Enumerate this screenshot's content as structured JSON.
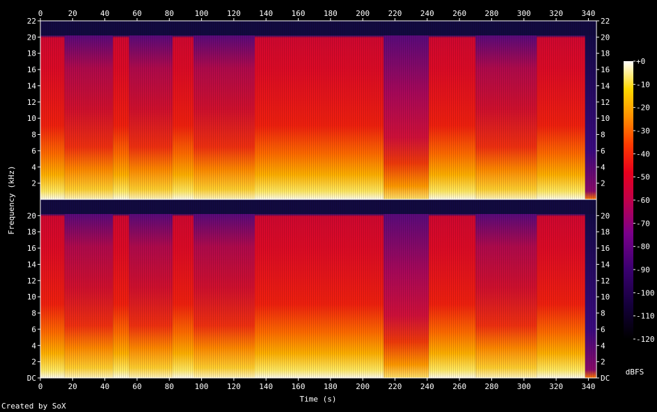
{
  "chart_data": {
    "type": "heatmap",
    "title": "",
    "xlabel": "Time (s)",
    "ylabel": "Frequency (kHz)",
    "xlim": [
      0,
      345
    ],
    "x_ticks": [
      0,
      20,
      40,
      60,
      80,
      100,
      120,
      140,
      160,
      180,
      200,
      220,
      240,
      260,
      280,
      300,
      320,
      340
    ],
    "channels": [
      {
        "ylim": [
          0,
          22
        ],
        "y_ticks": [
          "2",
          "4",
          "6",
          "8",
          "10",
          "12",
          "14",
          "16",
          "18",
          "20",
          "22"
        ]
      },
      {
        "ylim": [
          0,
          22
        ],
        "y_ticks": [
          "DC",
          "2",
          "4",
          "6",
          "8",
          "10",
          "12",
          "14",
          "16",
          "18",
          "20"
        ]
      }
    ],
    "colorbar": {
      "label": "dBFS",
      "range": [
        -120,
        0
      ],
      "ticks": [
        "+0",
        "-10",
        "-20",
        "-30",
        "-40",
        "-50",
        "-60",
        "-70",
        "-80",
        "-90",
        "-100",
        "-110",
        "-120"
      ]
    },
    "segments": [
      {
        "t": [
          0,
          15
        ],
        "level": "loud",
        "cutoff_khz": 20.2
      },
      {
        "t": [
          15,
          45
        ],
        "level": "mid",
        "cutoff_khz": 20.2
      },
      {
        "t": [
          45,
          55
        ],
        "level": "loud",
        "cutoff_khz": 20.2
      },
      {
        "t": [
          55,
          82
        ],
        "level": "mid",
        "cutoff_khz": 20.2
      },
      {
        "t": [
          82,
          95
        ],
        "level": "loud",
        "cutoff_khz": 20.2
      },
      {
        "t": [
          95,
          133
        ],
        "level": "mid",
        "cutoff_khz": 20.2
      },
      {
        "t": [
          133,
          213
        ],
        "level": "loud",
        "cutoff_khz": 20.2
      },
      {
        "t": [
          213,
          241
        ],
        "level": "quiet",
        "cutoff_khz": 20.2
      },
      {
        "t": [
          241,
          270
        ],
        "level": "loud",
        "cutoff_khz": 20.2
      },
      {
        "t": [
          270,
          308
        ],
        "level": "mid",
        "cutoff_khz": 20.2
      },
      {
        "t": [
          308,
          338
        ],
        "level": "loud",
        "cutoff_khz": 20.2
      },
      {
        "t": [
          338,
          345
        ],
        "level": "fade",
        "cutoff_khz": 20.2
      }
    ],
    "grid": false,
    "legend": "right"
  },
  "footer": {
    "credit": "Created by SoX"
  },
  "colors": {
    "background": "#000000",
    "text": "#ffffff",
    "axis": "#ffffff"
  }
}
